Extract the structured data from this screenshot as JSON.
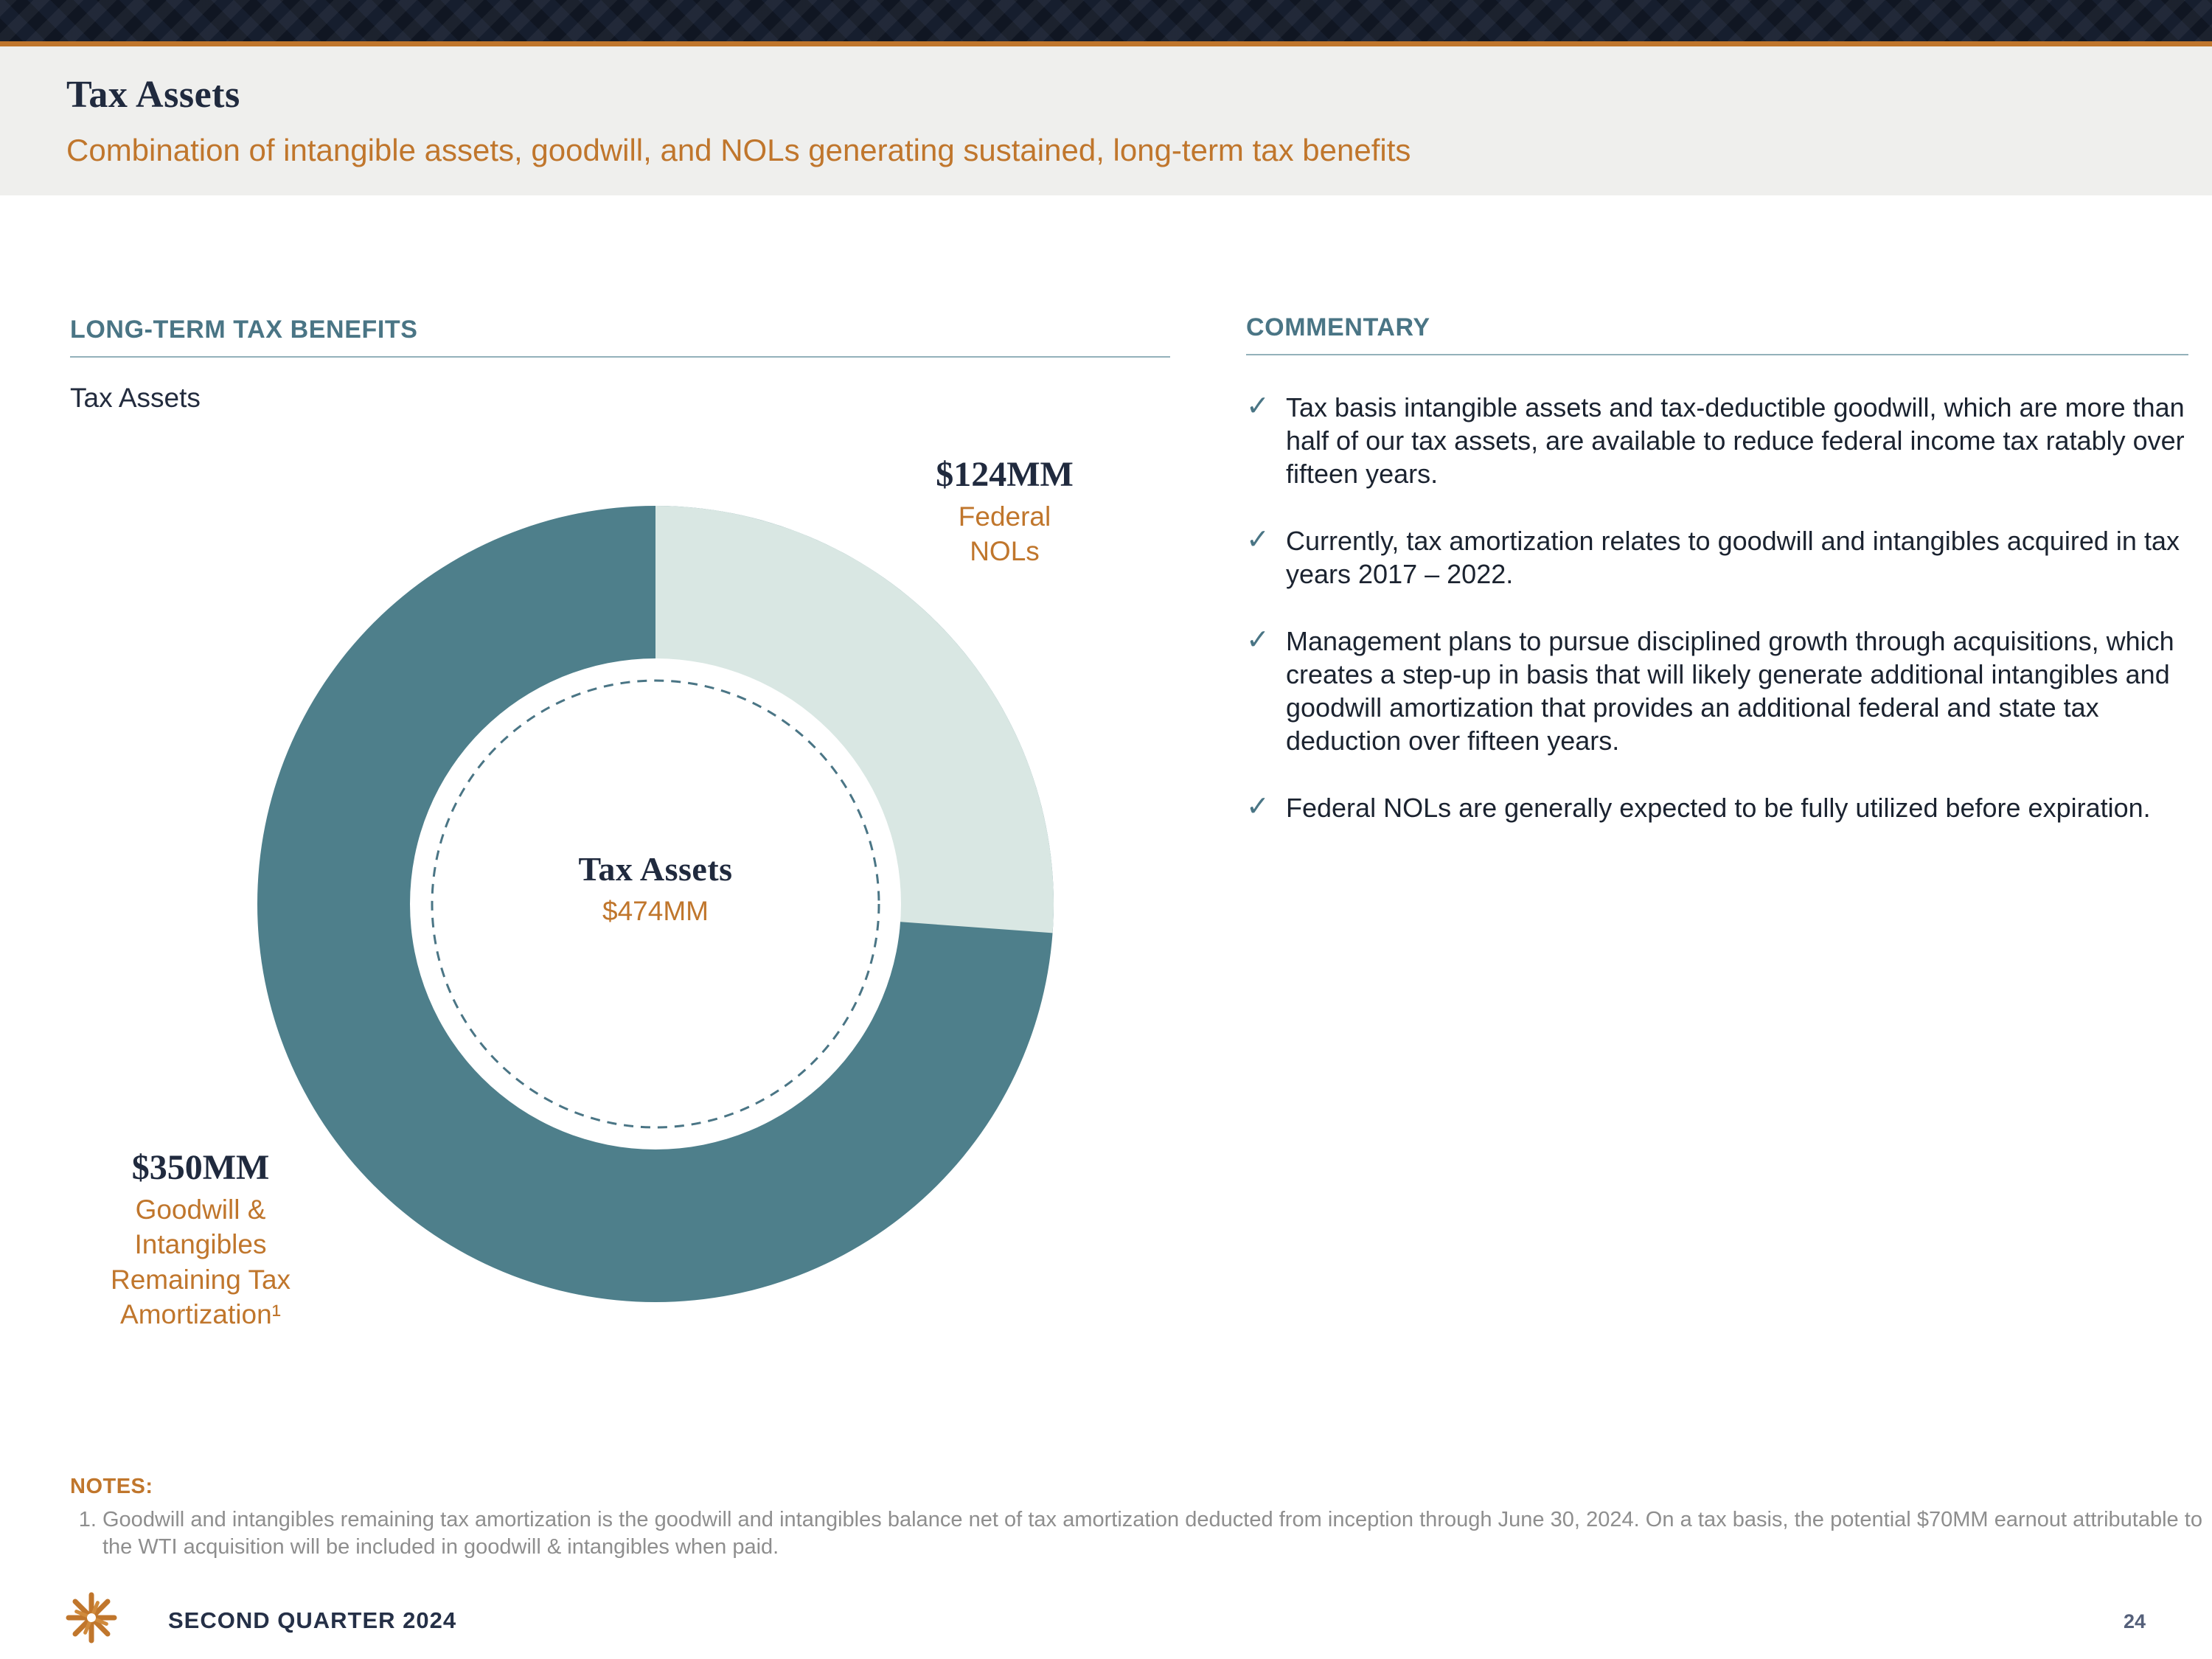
{
  "colors": {
    "navy": "#202a3e",
    "orange": "#c0762c",
    "heading_teal": "#4a7585",
    "note_gray": "#8e8e8e",
    "band_navy": "#161e2e",
    "header_bg": "#efefed"
  },
  "header": {
    "title": "Tax Assets",
    "subtitle": "Combination of intangible assets, goodwill, and NOLs generating sustained, long-term tax benefits"
  },
  "left_section": {
    "heading": "LONG-TERM TAX BENEFITS",
    "chart_caption": "Tax Assets"
  },
  "chart_data": {
    "type": "pie",
    "donut": true,
    "title": "Tax Assets",
    "center_label": "Tax Assets",
    "center_value": "$474MM",
    "units": "$MM",
    "categories": [
      "Goodwill & Intangibles Remaining Tax Amortization",
      "Federal NOLs"
    ],
    "values": [
      350,
      124
    ],
    "colors": [
      "#4e7f8b",
      "#d9e7e3"
    ],
    "start_angle_deg": -90,
    "direction": "clockwise",
    "labels": [
      {
        "value": "$350MM",
        "sublabel": "Goodwill & Intangibles Remaining Tax Amortization¹"
      },
      {
        "value": "$124MM",
        "sublabel": "Federal NOLs"
      }
    ]
  },
  "commentary": {
    "heading": "COMMENTARY",
    "bullet_icon": "✓",
    "bullets": [
      "Tax basis intangible assets and tax-deductible goodwill, which are more than half of our tax assets, are available to reduce federal income tax ratably over fifteen years.",
      "Currently, tax amortization relates to goodwill and intangibles acquired in tax years 2017 – 2022.",
      "Management plans to pursue disciplined growth through acquisitions, which creates a step-up in basis that will likely generate additional intangibles and goodwill amortization that provides an additional federal and state tax deduction over fifteen years.",
      "Federal NOLs are generally expected to be fully utilized before expiration."
    ]
  },
  "notes": {
    "heading": "NOTES:",
    "items": [
      "Goodwill and intangibles remaining tax amortization is the goodwill and intangibles balance net of tax amortization deducted from inception through June 30, 2024. On a tax basis, the potential $70MM earnout attributable to the WTI acquisition will be included in goodwill & intangibles when paid."
    ]
  },
  "footer": {
    "label": "SECOND QUARTER 2024",
    "page": "24"
  }
}
